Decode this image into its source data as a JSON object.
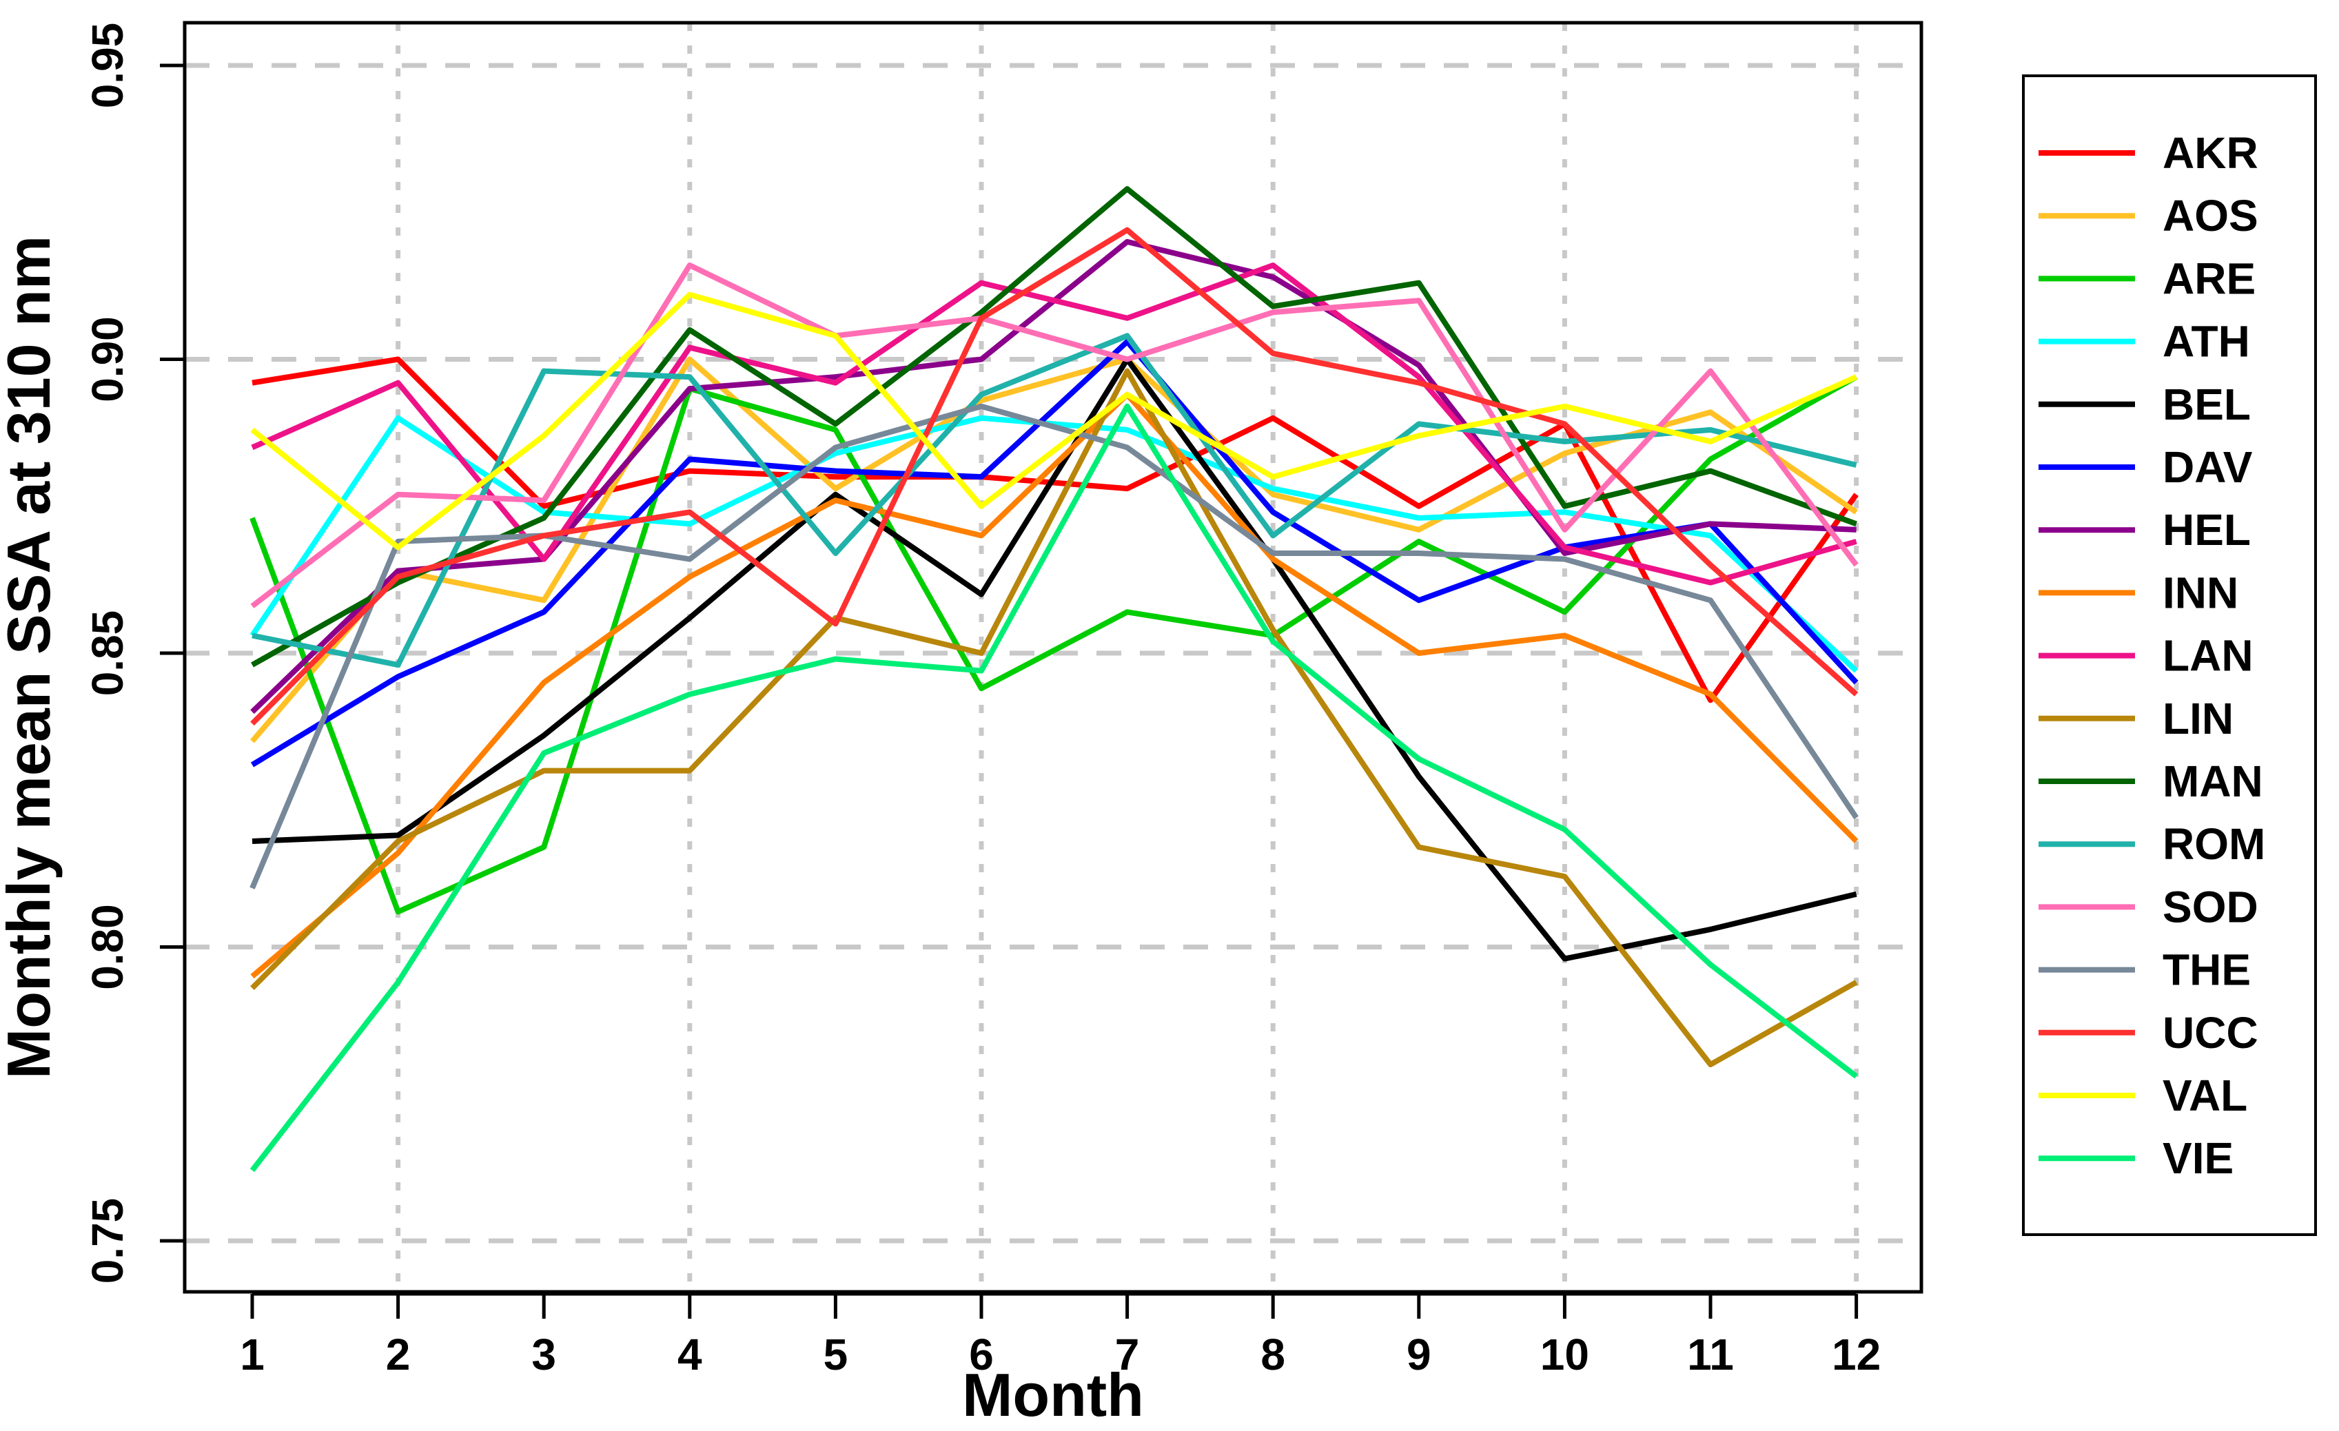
{
  "chart_data": {
    "type": "line",
    "title": "",
    "xlabel": "Month",
    "ylabel": "Monthly mean SSA at 310 nm",
    "months": [
      1,
      2,
      3,
      4,
      5,
      6,
      7,
      8,
      9,
      10,
      11,
      12
    ],
    "x_tick_labels": [
      "1",
      "2",
      "3",
      "4",
      "5",
      "6",
      "7",
      "8",
      "9",
      "10",
      "11",
      "12"
    ],
    "y_tick_values": [
      0.75,
      0.8,
      0.85,
      0.9,
      0.95
    ],
    "y_tick_labels": [
      "0.75",
      "0.80",
      "0.85",
      "0.90",
      "0.95"
    ],
    "ylim": [
      0.741,
      0.957
    ],
    "xlim": [
      0.54,
      12.45
    ],
    "grid": {
      "color": "#C8C8C8",
      "style": "dashed",
      "horizontal_values": [
        0.75,
        0.8,
        0.85,
        0.9,
        0.95
      ],
      "vertical_months": [
        2,
        4,
        6,
        8,
        10,
        12
      ]
    },
    "legend_position": "right-outside",
    "series": [
      {
        "name": "AKR",
        "color": "#FF0000",
        "values": [
          0.896,
          0.9,
          0.875,
          0.881,
          0.88,
          0.88,
          0.878,
          0.89,
          0.875,
          0.889,
          0.842,
          0.877
        ]
      },
      {
        "name": "AOS",
        "color": "#FFC125",
        "values": [
          0.835,
          0.864,
          0.859,
          0.9,
          0.878,
          0.893,
          0.9,
          0.877,
          0.871,
          0.884,
          0.891,
          0.874
        ]
      },
      {
        "name": "ARE",
        "color": "#00CD00",
        "values": [
          0.873,
          0.806,
          0.817,
          0.895,
          0.888,
          0.844,
          0.857,
          0.853,
          0.869,
          0.857,
          0.883,
          0.897
        ]
      },
      {
        "name": "ATH",
        "color": "#00FFFF",
        "values": [
          0.853,
          0.89,
          0.874,
          0.872,
          0.884,
          0.89,
          0.888,
          0.878,
          0.873,
          0.874,
          0.87,
          0.847
        ]
      },
      {
        "name": "BEL",
        "color": "#000000",
        "values": [
          0.818,
          0.819,
          0.836,
          0.856,
          0.877,
          0.86,
          0.9,
          0.866,
          0.829,
          0.798,
          0.803,
          0.809
        ]
      },
      {
        "name": "DAV",
        "color": "#0000FF",
        "values": [
          0.831,
          0.846,
          0.857,
          0.883,
          0.881,
          0.88,
          0.903,
          0.874,
          0.859,
          0.868,
          0.872,
          0.845
        ]
      },
      {
        "name": "HEL",
        "color": "#8B008B",
        "values": [
          0.84,
          0.864,
          0.866,
          0.895,
          0.897,
          0.9,
          0.92,
          0.914,
          0.899,
          0.867,
          0.872,
          0.871
        ]
      },
      {
        "name": "INN",
        "color": "#FF7F00",
        "values": [
          0.795,
          0.816,
          0.845,
          0.863,
          0.876,
          0.87,
          0.894,
          0.866,
          0.85,
          0.853,
          0.843,
          0.818
        ]
      },
      {
        "name": "LAN",
        "color": "#EE1289",
        "values": [
          0.885,
          0.896,
          0.866,
          0.902,
          0.896,
          0.913,
          0.907,
          0.916,
          0.897,
          0.868,
          0.862,
          0.869
        ]
      },
      {
        "name": "LIN",
        "color": "#B8860B",
        "values": [
          0.793,
          0.818,
          0.83,
          0.83,
          0.856,
          0.85,
          0.898,
          0.854,
          0.817,
          0.812,
          0.78,
          0.794
        ]
      },
      {
        "name": "MAN",
        "color": "#006400",
        "values": [
          0.848,
          0.862,
          0.873,
          0.905,
          0.889,
          0.908,
          0.929,
          0.909,
          0.913,
          0.875,
          0.881,
          0.872
        ]
      },
      {
        "name": "ROM",
        "color": "#20B2AA",
        "values": [
          0.853,
          0.848,
          0.898,
          0.897,
          0.867,
          0.894,
          0.904,
          0.87,
          0.889,
          0.886,
          0.888,
          0.882
        ]
      },
      {
        "name": "SOD",
        "color": "#FF6EB4",
        "values": [
          0.858,
          0.877,
          0.876,
          0.916,
          0.904,
          0.907,
          0.9,
          0.908,
          0.91,
          0.871,
          0.898,
          0.865
        ]
      },
      {
        "name": "THE",
        "color": "#778899",
        "values": [
          0.81,
          0.869,
          0.87,
          0.866,
          0.885,
          0.892,
          0.885,
          0.867,
          0.867,
          0.866,
          0.859,
          0.822
        ]
      },
      {
        "name": "UCC",
        "color": "#FF3030",
        "values": [
          0.838,
          0.863,
          0.87,
          0.874,
          0.855,
          0.907,
          0.922,
          0.901,
          0.896,
          0.889,
          0.865,
          0.843
        ]
      },
      {
        "name": "VAL",
        "color": "#FFFF00",
        "values": [
          0.888,
          0.868,
          0.887,
          0.911,
          0.904,
          0.875,
          0.894,
          0.88,
          0.887,
          0.892,
          0.886,
          0.897
        ]
      },
      {
        "name": "VIE",
        "color": "#00EE76",
        "values": [
          0.762,
          0.794,
          0.833,
          0.843,
          0.849,
          0.847,
          0.892,
          0.852,
          0.832,
          0.82,
          0.797,
          0.778
        ]
      }
    ]
  }
}
